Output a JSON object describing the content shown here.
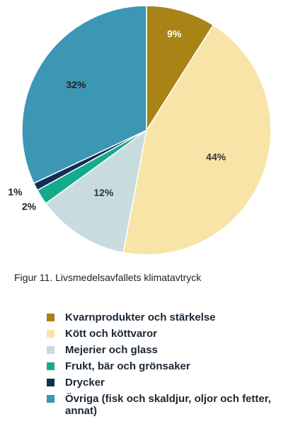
{
  "chart_data": {
    "type": "pie",
    "title": "",
    "start_angle_deg": 0,
    "direction": "clockwise",
    "slices": [
      {
        "label": "Kvarnprodukter och stärkelse",
        "value": 9,
        "value_label": "9%",
        "color": "#a88316"
      },
      {
        "label": "Kött och köttvaror",
        "value": 44,
        "value_label": "44%",
        "color": "#f8e4a6"
      },
      {
        "label": "Mejerier och glass",
        "value": 12,
        "value_label": "12%",
        "color": "#c8dce0"
      },
      {
        "label": "Frukt, bär och grönsaker",
        "value": 2,
        "value_label": "2%",
        "color": "#14ab8a"
      },
      {
        "label": "Drycker",
        "value": 1,
        "value_label": "1%",
        "color": "#122e55"
      },
      {
        "label": "Övriga (fisk och skaldjur, oljor och fetter, annat)",
        "value": 32,
        "value_label": "32%",
        "color": "#3c97b4"
      }
    ],
    "legend_position": "bottom-left"
  },
  "caption": "Figur 11. Livsmedelsavfallets klimatavtryck"
}
